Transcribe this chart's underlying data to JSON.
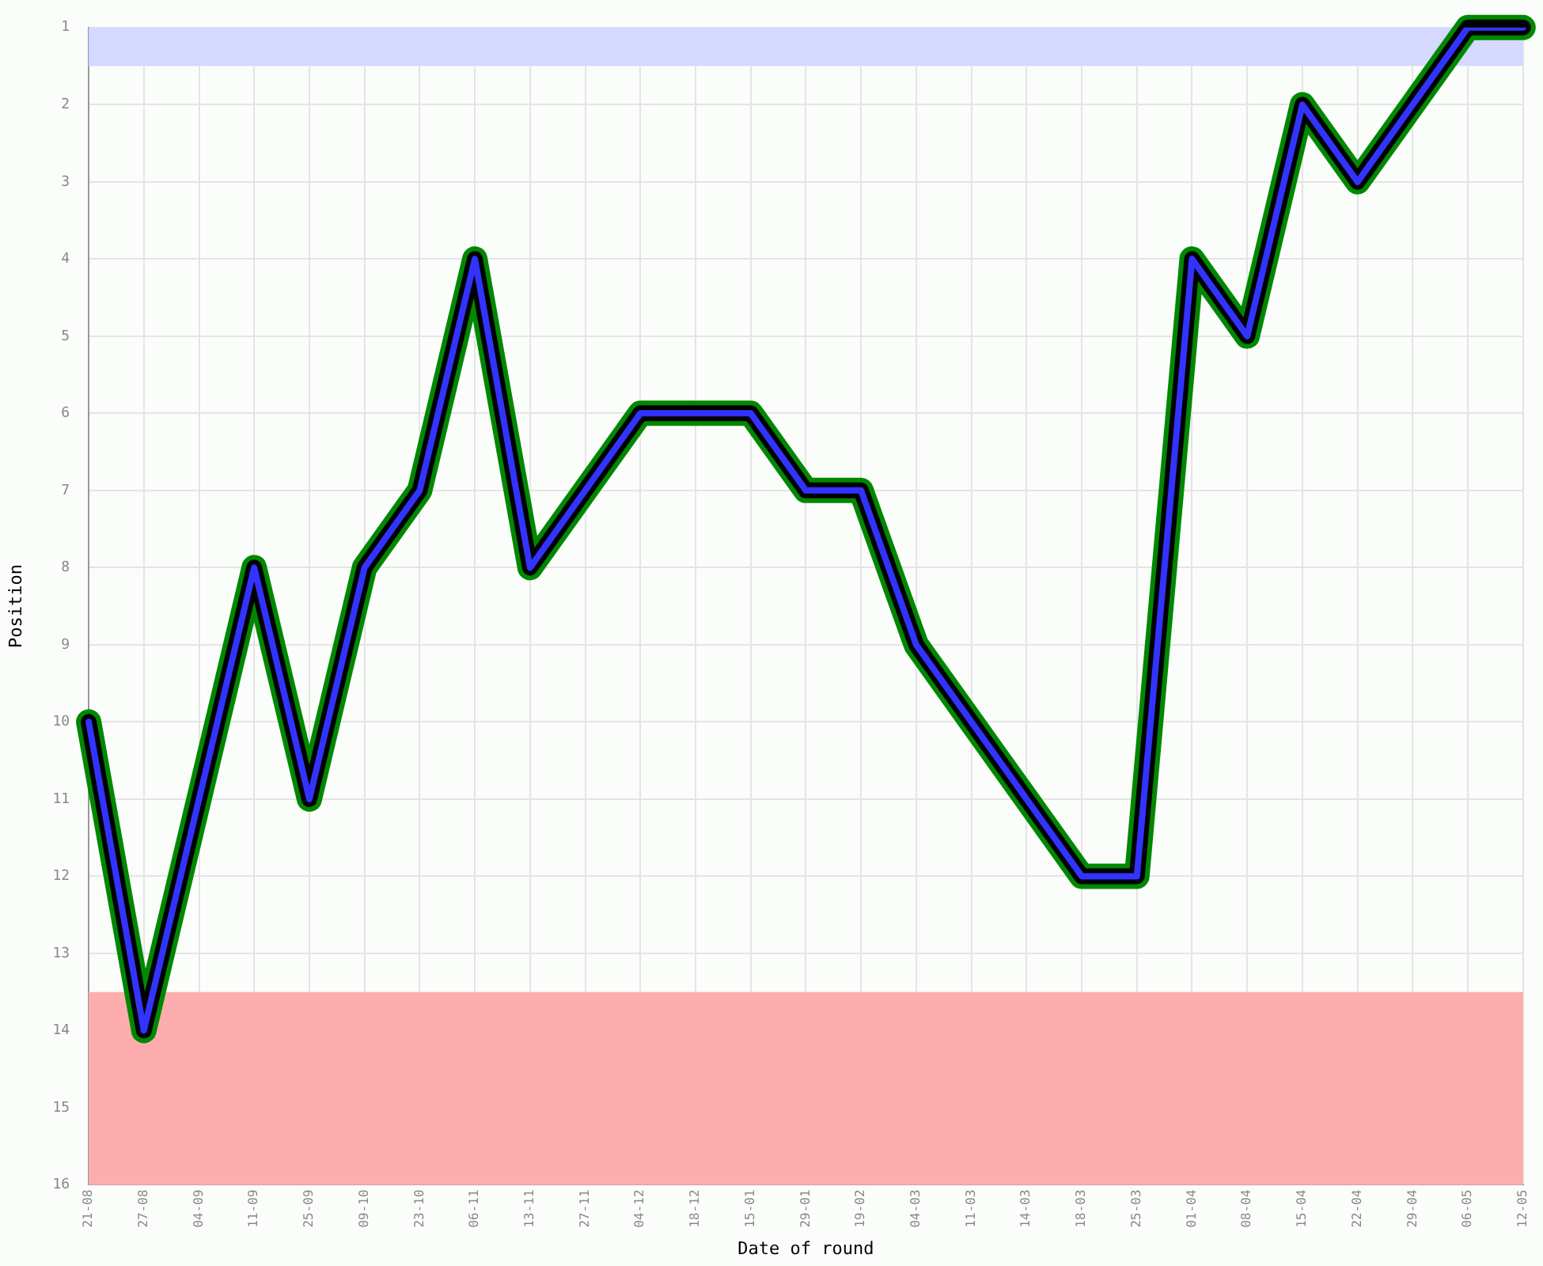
{
  "chart_data": {
    "type": "line",
    "xlabel": "Date of round",
    "ylabel": "Position",
    "categories": [
      "21-08",
      "27-08",
      "04-09",
      "11-09",
      "25-09",
      "09-10",
      "23-10",
      "06-11",
      "13-11",
      "27-11",
      "04-12",
      "18-12",
      "15-01",
      "29-01",
      "19-02",
      "04-03",
      "11-03",
      "14-03",
      "18-03",
      "25-03",
      "01-04",
      "08-04",
      "15-04",
      "22-04",
      "29-04",
      "06-05",
      "12-05"
    ],
    "series": [
      {
        "color": "#3333ff",
        "values": [
          10,
          14,
          11,
          8,
          11,
          8,
          7,
          4,
          8,
          7,
          6,
          6,
          6,
          7,
          7,
          9,
          10,
          11,
          12,
          12,
          4,
          5,
          2,
          3,
          2,
          1,
          1
        ]
      }
    ],
    "ylim": [
      16,
      1
    ],
    "yticks": [
      1,
      2,
      3,
      4,
      5,
      6,
      7,
      8,
      9,
      10,
      11,
      12,
      13,
      14,
      15,
      16
    ],
    "bands": [
      {
        "axis": "y",
        "from": 1,
        "to": 1.5,
        "color": "#d5d9ff"
      },
      {
        "axis": "y",
        "from": 13.5,
        "to": 16,
        "color": "#fdadad"
      }
    ],
    "grid": true,
    "legend": false,
    "marker": "none",
    "line_style": "solid"
  }
}
